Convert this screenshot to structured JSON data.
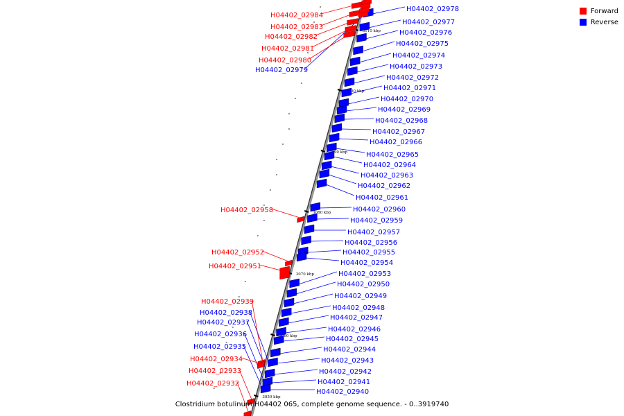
{
  "legend": {
    "forward_label": "Forward",
    "reverse_label": "Reverse",
    "forward_color": "#ff0000",
    "reverse_color": "#0000ff"
  },
  "caption": "Clostridium botulinum H04402 065, complete genome sequence. - 0..3919740",
  "ticks": [
    "3110 kbp",
    "3100 kbp",
    "3090 kbp",
    "3080 kbp",
    "3070 kbp",
    "3060 kbp",
    "3050 kbp"
  ],
  "forward_genes": [
    "H04402_02984",
    "H04402_02983",
    "H04402_02982",
    "H04402_02981",
    "H04402_02980",
    "H04402_02958",
    "H04402_02952",
    "H04402_02951",
    "H04402_02939",
    "H04402_02934",
    "H04402_02933",
    "H04402_02932"
  ],
  "reverse_genes_left": [
    "H04402_02979",
    "H04402_02938",
    "H04402_02937",
    "H04402_02936",
    "H04402_02935"
  ],
  "reverse_genes_right": [
    "H04402_02978",
    "H04402_02977",
    "H04402_02976",
    "H04402_02975",
    "H04402_02974",
    "H04402_02973",
    "H04402_02972",
    "H04402_02971",
    "H04402_02970",
    "H04402_02969",
    "H04402_02968",
    "H04402_02967",
    "H04402_02966",
    "H04402_02965",
    "H04402_02964",
    "H04402_02963",
    "H04402_02962",
    "H04402_02961",
    "H04402_02960",
    "H04402_02959",
    "H04402_02957",
    "H04402_02956",
    "H04402_02955",
    "H04402_02954",
    "H04402_02953",
    "H04402_02950",
    "H04402_02949",
    "H04402_02948",
    "H04402_02947",
    "H04402_02946",
    "H04402_02945",
    "H04402_02944",
    "H04402_02943",
    "H04402_02942",
    "H04402_02941",
    "H04402_02940"
  ]
}
